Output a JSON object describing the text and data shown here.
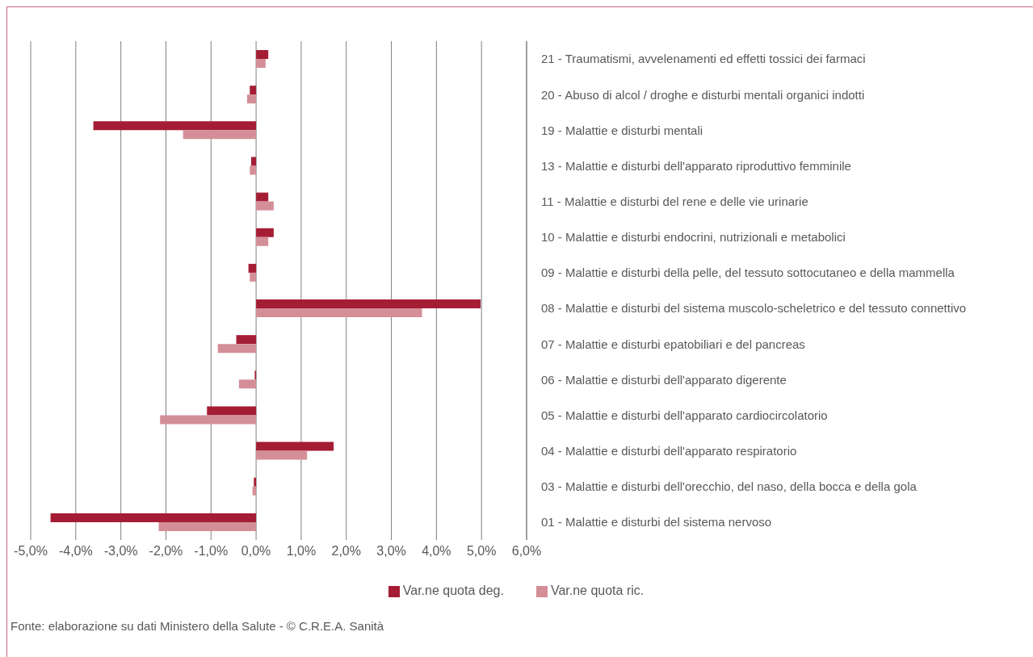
{
  "chart_data": {
    "type": "bar",
    "orientation": "horizontal",
    "categories": [
      "21 - Traumatismi, avvelenamenti ed effetti tossici dei farmaci",
      "20 - Abuso di alcol / droghe e disturbi mentali organici indotti",
      "19 - Malattie e disturbi mentali",
      "13 - Malattie e disturbi dell'apparato riproduttivo femminile",
      "11 - Malattie e disturbi del rene e delle vie urinarie",
      "10 - Malattie e disturbi endocrini, nutrizionali e metabolici",
      "09 - Malattie e disturbi della pelle, del tessuto sottocutaneo e della mammella",
      "08 - Malattie e disturbi del sistema muscolo-scheletrico e del tessuto connettivo",
      "07 - Malattie e disturbi epatobiliari e del pancreas",
      "06 - Malattie e disturbi dell'apparato digerente",
      "05 - Malattie e disturbi dell'apparato cardiocircolatorio",
      "04 - Malattie e disturbi dell'apparato respiratorio",
      "03 - Malattie e disturbi dell'orecchio, del naso, della bocca e della gola",
      "01 - Malattie e disturbi del sistema nervoso"
    ],
    "series": [
      {
        "name": "Var.ne quota deg.",
        "color": "#a41d35",
        "values": [
          0.27,
          -0.14,
          -3.61,
          -0.11,
          0.27,
          0.39,
          -0.17,
          4.98,
          -0.44,
          -0.03,
          -1.09,
          1.72,
          -0.05,
          -4.56
        ]
      },
      {
        "name": "Var.ne quota ric.",
        "color": "#d48e98",
        "values": [
          0.21,
          -0.2,
          -1.62,
          -0.14,
          0.39,
          0.27,
          -0.14,
          3.68,
          -0.85,
          -0.38,
          -2.13,
          1.13,
          -0.08,
          -2.16
        ]
      }
    ],
    "xlim": [
      -5,
      6
    ],
    "xticks": [
      {
        "value": -5,
        "label": "-5,0%"
      },
      {
        "value": -4,
        "label": "-4,0%"
      },
      {
        "value": -3,
        "label": "-3,0%"
      },
      {
        "value": -2,
        "label": "-2,0%"
      },
      {
        "value": -1,
        "label": "-1,0%"
      },
      {
        "value": 0,
        "label": "0,0%"
      },
      {
        "value": 1,
        "label": "1,0%"
      },
      {
        "value": 2,
        "label": "2,0%"
      },
      {
        "value": 3,
        "label": "3,0%"
      },
      {
        "value": 4,
        "label": "4,0%"
      },
      {
        "value": 5,
        "label": "5,0%"
      },
      {
        "value": 6,
        "label": "6,0%"
      }
    ],
    "grid": "x",
    "legend": "bottom",
    "annotations": [
      "Fonte: elaborazione su dati Ministero della Salute - © C.R.E.A. Sanità"
    ]
  }
}
